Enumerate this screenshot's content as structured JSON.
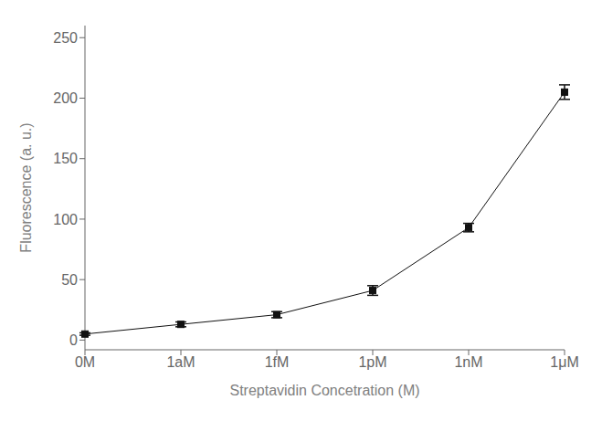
{
  "chart_data": {
    "type": "line",
    "categories": [
      "0M",
      "1aM",
      "1fM",
      "1pM",
      "1nM",
      "1μM"
    ],
    "values": [
      5.0,
      13.0,
      21.0,
      41.0,
      93.0,
      205.0
    ],
    "errors": [
      1.0,
      2.0,
      2.5,
      4.0,
      3.5,
      6.0
    ],
    "xlabel": "Streptavidin Concetration (M)",
    "ylabel": "Fluorescence (a. u.)",
    "ylim": [
      -8,
      260
    ],
    "yticks": [
      0,
      50,
      100,
      150,
      200,
      250
    ],
    "color": "#111111",
    "marker": "square",
    "grid": false
  }
}
